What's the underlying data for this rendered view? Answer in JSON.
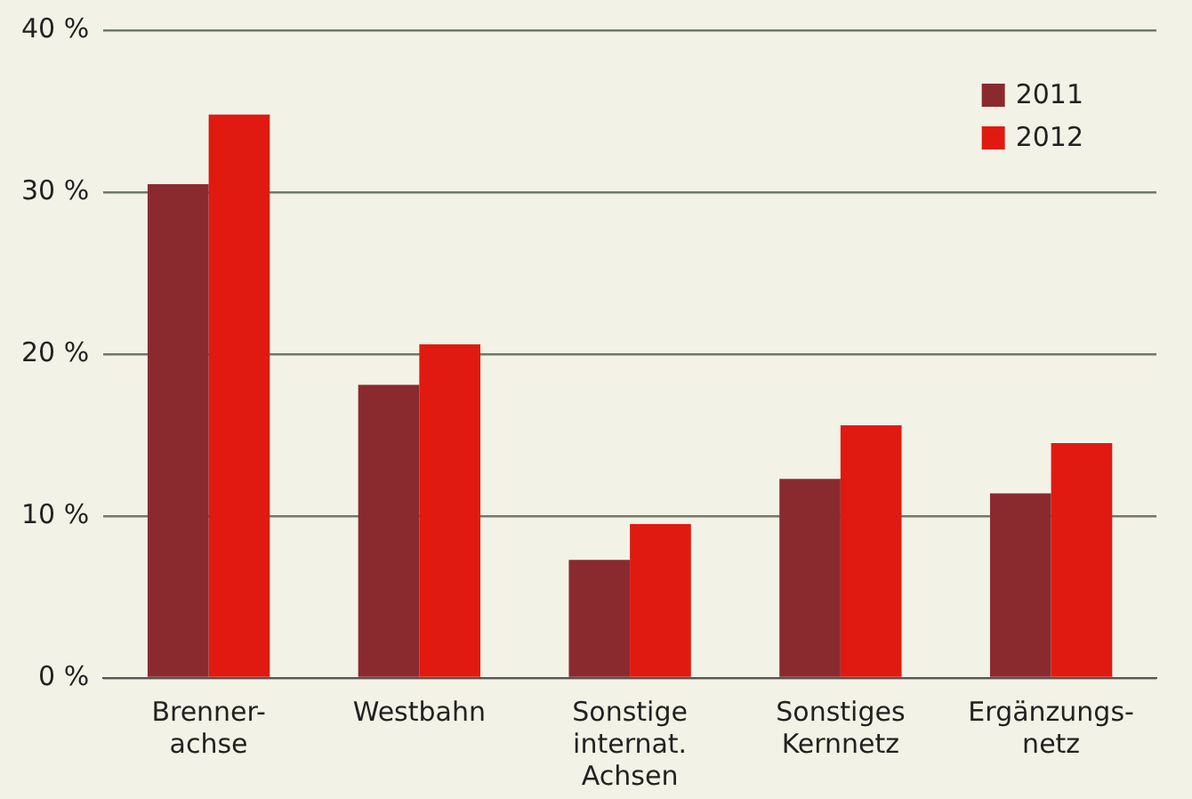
{
  "chart_data": {
    "type": "bar",
    "categories": [
      "Brenner-\nachse",
      "Westbahn",
      "Sonstige\ninternat.\nAchsen",
      "Sonstiges\nKernnetz",
      "Ergänzungs-\nnetz"
    ],
    "series": [
      {
        "name": "2011",
        "color": "#8b2a2e",
        "values": [
          30.5,
          18.1,
          7.3,
          12.3,
          11.4
        ]
      },
      {
        "name": "2012",
        "color": "#e01a10",
        "values": [
          34.8,
          20.6,
          9.5,
          15.6,
          14.5
        ]
      }
    ],
    "ylim": [
      0,
      40
    ],
    "yticks": [
      {
        "value": 0,
        "label": "0 %"
      },
      {
        "value": 10,
        "label": "10 %"
      },
      {
        "value": 20,
        "label": "20 %"
      },
      {
        "value": 30,
        "label": "30 %"
      },
      {
        "value": 40,
        "label": "40 %"
      }
    ],
    "grid": "y",
    "legend": "top right"
  }
}
